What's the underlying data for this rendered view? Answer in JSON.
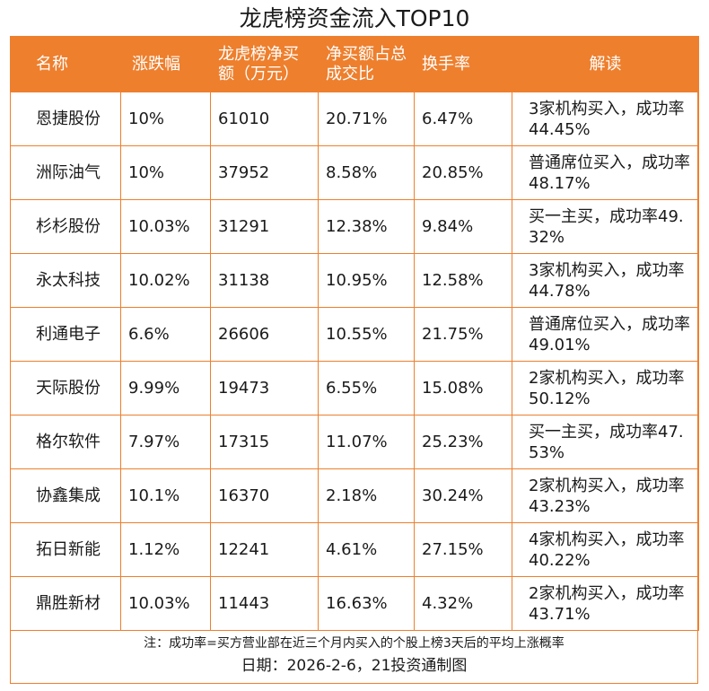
{
  "title": "龙虎榜资金流入TOP10",
  "headers": [
    "名称",
    "涨跌幅",
    "龙虎榜净买额（万元）",
    "净买额占总成交比",
    "换手率",
    "解读"
  ],
  "rows": [
    {
      "name": "恩捷股份",
      "change": "10%",
      "net_buy": "61010",
      "ratio": "20.71%",
      "turnover": "6.47%",
      "note": "3家机构买入，成功率44.45%"
    },
    {
      "name": "洲际油气",
      "change": "10%",
      "net_buy": "37952",
      "ratio": "8.58%",
      "turnover": "20.85%",
      "note": "普通席位买入，成功率48.17%"
    },
    {
      "name": "杉杉股份",
      "change": "10.03%",
      "net_buy": "31291",
      "ratio": "12.38%",
      "turnover": "9.84%",
      "note": "买一主买，成功率49.32%"
    },
    {
      "name": "永太科技",
      "change": "10.02%",
      "net_buy": "31138",
      "ratio": "10.95%",
      "turnover": "12.58%",
      "note": "3家机构买入，成功率44.78%"
    },
    {
      "name": "利通电子",
      "change": "6.6%",
      "net_buy": "26606",
      "ratio": "10.55%",
      "turnover": "21.75%",
      "note": "普通席位买入，成功率49.01%"
    },
    {
      "name": "天际股份",
      "change": "9.99%",
      "net_buy": "19473",
      "ratio": "6.55%",
      "turnover": "15.08%",
      "note": "2家机构买入，成功率50.12%"
    },
    {
      "name": "格尔软件",
      "change": "7.97%",
      "net_buy": "17315",
      "ratio": "11.07%",
      "turnover": "25.23%",
      "note": "买一主买，成功率47.53%"
    },
    {
      "name": "协鑫集成",
      "change": "10.1%",
      "net_buy": "16370",
      "ratio": "2.18%",
      "turnover": "30.24%",
      "note": "2家机构买入，成功率43.23%"
    },
    {
      "name": "拓日新能",
      "change": "1.12%",
      "net_buy": "12241",
      "ratio": "4.61%",
      "turnover": "27.15%",
      "note": "4家机构买入，成功率40.22%"
    },
    {
      "name": "鼎胜新材",
      "change": "10.03%",
      "net_buy": "11443",
      "ratio": "16.63%",
      "turnover": "4.32%",
      "note": "2家机构买入，成功率43.71%"
    }
  ],
  "footnote": "注：成功率=买方营业部在近三个月内买入的个股上榜3天后的平均上涨概率",
  "date_line": "日期：2026-2-6，21投资通制图",
  "colors": {
    "accent": "#ee7f2d",
    "header_text": "#ffffff"
  }
}
